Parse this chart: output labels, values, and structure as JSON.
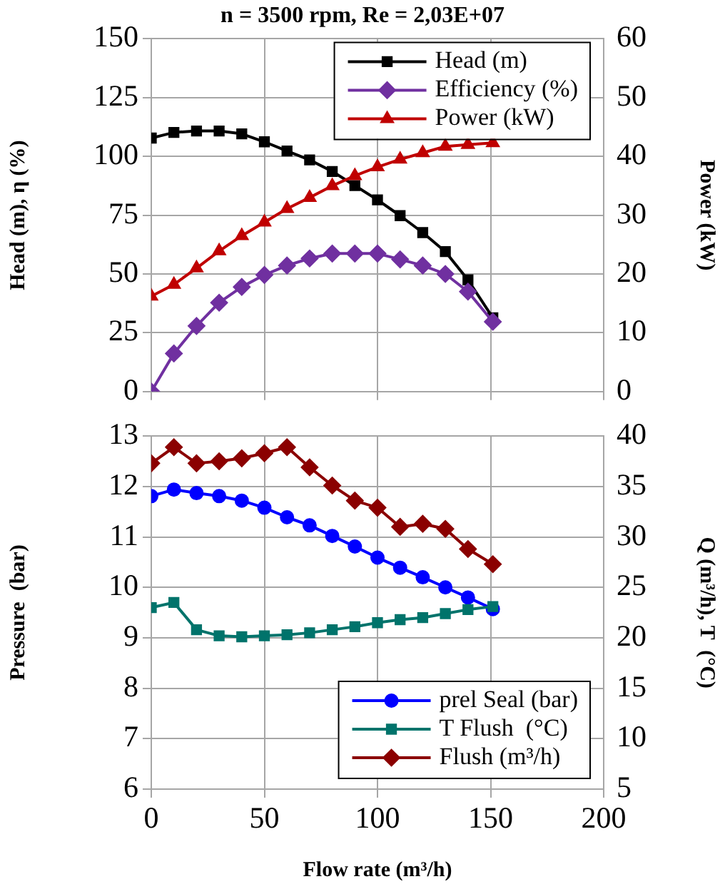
{
  "chart_data": [
    {
      "type": "line",
      "title": "n = 3500 rpm, Re = 2,03E+07",
      "ylabel": "Head (m), η (%)",
      "y2label": "Power (kW)",
      "x": [
        0,
        10,
        20,
        30,
        40,
        50,
        60,
        70,
        80,
        90,
        100,
        110,
        120,
        130,
        140,
        151
      ],
      "xlim": [
        0,
        200
      ],
      "xticks": [
        0,
        50,
        100,
        150,
        200
      ],
      "ylim": [
        0,
        150
      ],
      "yticks": [
        0,
        25,
        50,
        75,
        100,
        125,
        150
      ],
      "y2lim": [
        0,
        60
      ],
      "y2ticks": [
        0,
        10,
        20,
        30,
        40,
        50,
        60
      ],
      "grid": true,
      "legend": "top right",
      "tick_labels": "y",
      "series": [
        {
          "name": "Head (m)",
          "color": "#000000",
          "marker": "square",
          "values": [
            107.8,
            110.2,
            110.8,
            110.8,
            109.6,
            106.2,
            102.3,
            98.5,
            93.6,
            87.6,
            81.5,
            74.8,
            67.6,
            59.5,
            47.5,
            31.4
          ]
        },
        {
          "name": "Efficiency (%)",
          "color": "#7030a0",
          "marker": "diamond",
          "values": [
            0,
            16.2,
            27.9,
            37.8,
            44.5,
            49.6,
            53.6,
            56.6,
            58.7,
            58.7,
            58.7,
            56.2,
            53.6,
            50,
            42.5,
            29.7
          ]
        },
        {
          "name": "Power (kW)",
          "color": "#c00000",
          "marker": "triangle",
          "axis": "y2",
          "values": [
            16.2,
            18.2,
            21.0,
            23.9,
            26.5,
            28.8,
            31.1,
            33.0,
            35.0,
            36.7,
            38.2,
            39.5,
            40.6,
            41.7,
            42.0,
            42.3
          ]
        }
      ]
    },
    {
      "type": "line",
      "xlabel": "Flow rate (m³/h)",
      "ylabel": "Pressure  (bar)",
      "y2label": "Q (m³/h), T  (°C)",
      "x": [
        0,
        10,
        20,
        30,
        40,
        50,
        60,
        70,
        80,
        90,
        100,
        110,
        120,
        130,
        140,
        151
      ],
      "xlim": [
        0,
        200
      ],
      "xticks": [
        0,
        50,
        100,
        150,
        200
      ],
      "ylim": [
        6,
        13
      ],
      "yticks": [
        6,
        7,
        8,
        9,
        10,
        11,
        12,
        13
      ],
      "y2lim": [
        5,
        40
      ],
      "y2ticks": [
        5,
        10,
        15,
        20,
        25,
        30,
        35,
        40
      ],
      "grid": true,
      "legend": "bottom right",
      "series": [
        {
          "name": "prel Seal (bar)",
          "color": "#0000ff",
          "marker": "circle",
          "values": [
            11.81,
            11.94,
            11.87,
            11.81,
            11.72,
            11.58,
            11.39,
            11.23,
            11.02,
            10.81,
            10.59,
            10.39,
            10.2,
            10.0,
            9.8,
            9.57
          ]
        },
        {
          "name": "T Flush  (°C)",
          "color": "#00736b",
          "marker": "square",
          "axis": "y2",
          "values": [
            23.0,
            23.5,
            20.8,
            20.2,
            20.1,
            20.2,
            20.3,
            20.5,
            20.8,
            21.1,
            21.5,
            21.8,
            22.0,
            22.4,
            22.8,
            23.1
          ]
        },
        {
          "name": "Flush (m³/h)",
          "color": "#8b0000",
          "marker": "diamond",
          "axis": "y2",
          "values": [
            37.3,
            38.9,
            37.3,
            37.5,
            37.8,
            38.3,
            38.9,
            36.9,
            35.1,
            33.6,
            32.9,
            31.0,
            31.3,
            30.8,
            28.8,
            27.3
          ]
        }
      ]
    }
  ]
}
